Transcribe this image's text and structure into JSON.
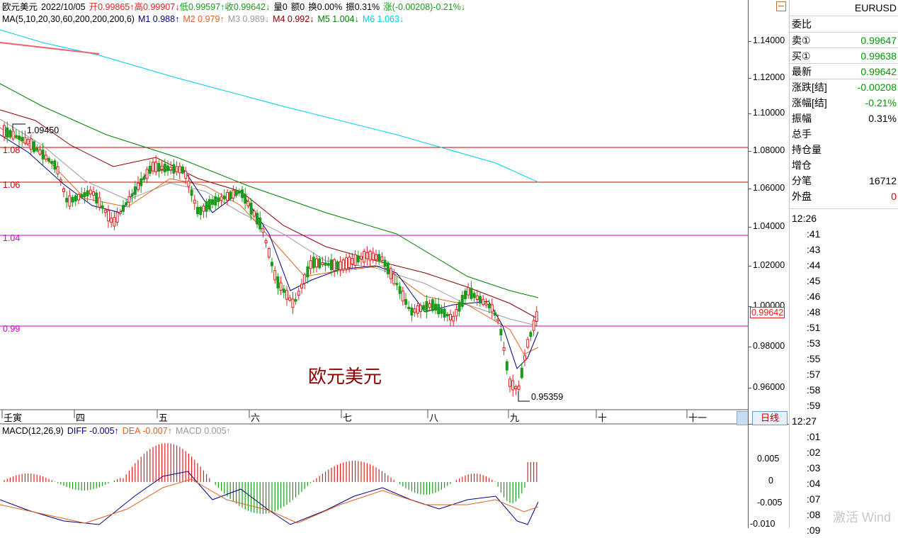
{
  "header": {
    "name": "欧元美元",
    "date": "2022/10/05",
    "open": "开0.99865↑",
    "high": "高0.99907↓",
    "low": "低0.99597↑",
    "close": "收0.99642↓",
    "volume": "量0",
    "amount": "额0",
    "turnover": "换0.00%",
    "amplitude": "振0.31%",
    "change": "涨(-0.00208)-0.21%↓"
  },
  "ma_row": {
    "label": "MA(5,10,20,30,60,200,200,200,6)",
    "m1": "M1 0.988↑",
    "m2": "M2 0.979↑",
    "m3": "M3 0.989↓",
    "m4": "M4 0.992↓",
    "m5": "M5 1.004↓",
    "m6": "M6 1.063↓"
  },
  "macd_row": {
    "label": "MACD(12,26,9)",
    "diff": "DIFF -0.005↑",
    "dea": "DEA -0.007↑",
    "macd": "MACD 0.005↑"
  },
  "chart_title": "欧元美元",
  "price_axis": [
    "1.14000",
    "1.12000",
    "1.10000",
    "1.08000",
    "1.06000",
    "1.04000",
    "1.02000",
    "1.00000",
    "0.98000",
    "0.96000"
  ],
  "current_price_tag": "0.99642",
  "macd_axis": [
    "0.005",
    "0",
    "-0.005",
    "-0.010"
  ],
  "hlines": [
    {
      "label": "1.08",
      "color": "#cc0000"
    },
    {
      "label": "1.06",
      "color": "#cc0000"
    },
    {
      "label": "1.04",
      "color": "#cc00cc"
    },
    {
      "label": "0.99",
      "color": "#cc00cc"
    }
  ],
  "high_mark": "1.09450",
  "low_mark": "0.95359",
  "months": [
    "壬寅",
    "四",
    "五",
    "六",
    "七",
    "八",
    "九",
    "十",
    "十一"
  ],
  "period_tab": "日线",
  "right_panel": {
    "symbol": "EURUSD",
    "weibi_label": "委比",
    "rows": [
      {
        "label": "卖①",
        "value": "0.99647",
        "color": "#009900"
      },
      {
        "label": "买①",
        "value": "0.99638",
        "color": "#009900"
      },
      {
        "label": "最新",
        "value": "0.99642",
        "color": "#009900"
      },
      {
        "label": "涨跌[结]",
        "value": "-0.00208",
        "color": "#009900"
      },
      {
        "label": "涨幅[结]",
        "value": "-0.21%",
        "color": "#009900"
      },
      {
        "label": "振幅",
        "value": "0.31%",
        "color": "#000000"
      },
      {
        "label": "总手",
        "value": "",
        "color": "#000000"
      },
      {
        "label": "持仓量",
        "value": "",
        "color": "#000000"
      },
      {
        "label": "增仓",
        "value": "",
        "color": "#000000"
      },
      {
        "label": "分笔",
        "value": "16712",
        "color": "#000000"
      },
      {
        "label": "外盘",
        "value": "0",
        "color": "#cc0000"
      }
    ],
    "tick_groups": [
      {
        "head": "12:26",
        "items": [
          ":41",
          ":43",
          ":44",
          ":45",
          ":46",
          ":48",
          ":51",
          ":53",
          ":55",
          ":57",
          ":58",
          ":59"
        ]
      },
      {
        "head": "12:27",
        "items": [
          ":01",
          ":02",
          ":03",
          ":04",
          ":07",
          ":08",
          ":09"
        ]
      }
    ]
  },
  "watermark": "激活 Wind",
  "colors": {
    "up": "#e02020",
    "down": "#1a9a1a",
    "ma1": "#000080",
    "ma2": "#e06020",
    "ma3": "#999999",
    "ma4": "#8b0000",
    "ma5": "#008000",
    "ma6": "#00ccee"
  }
}
